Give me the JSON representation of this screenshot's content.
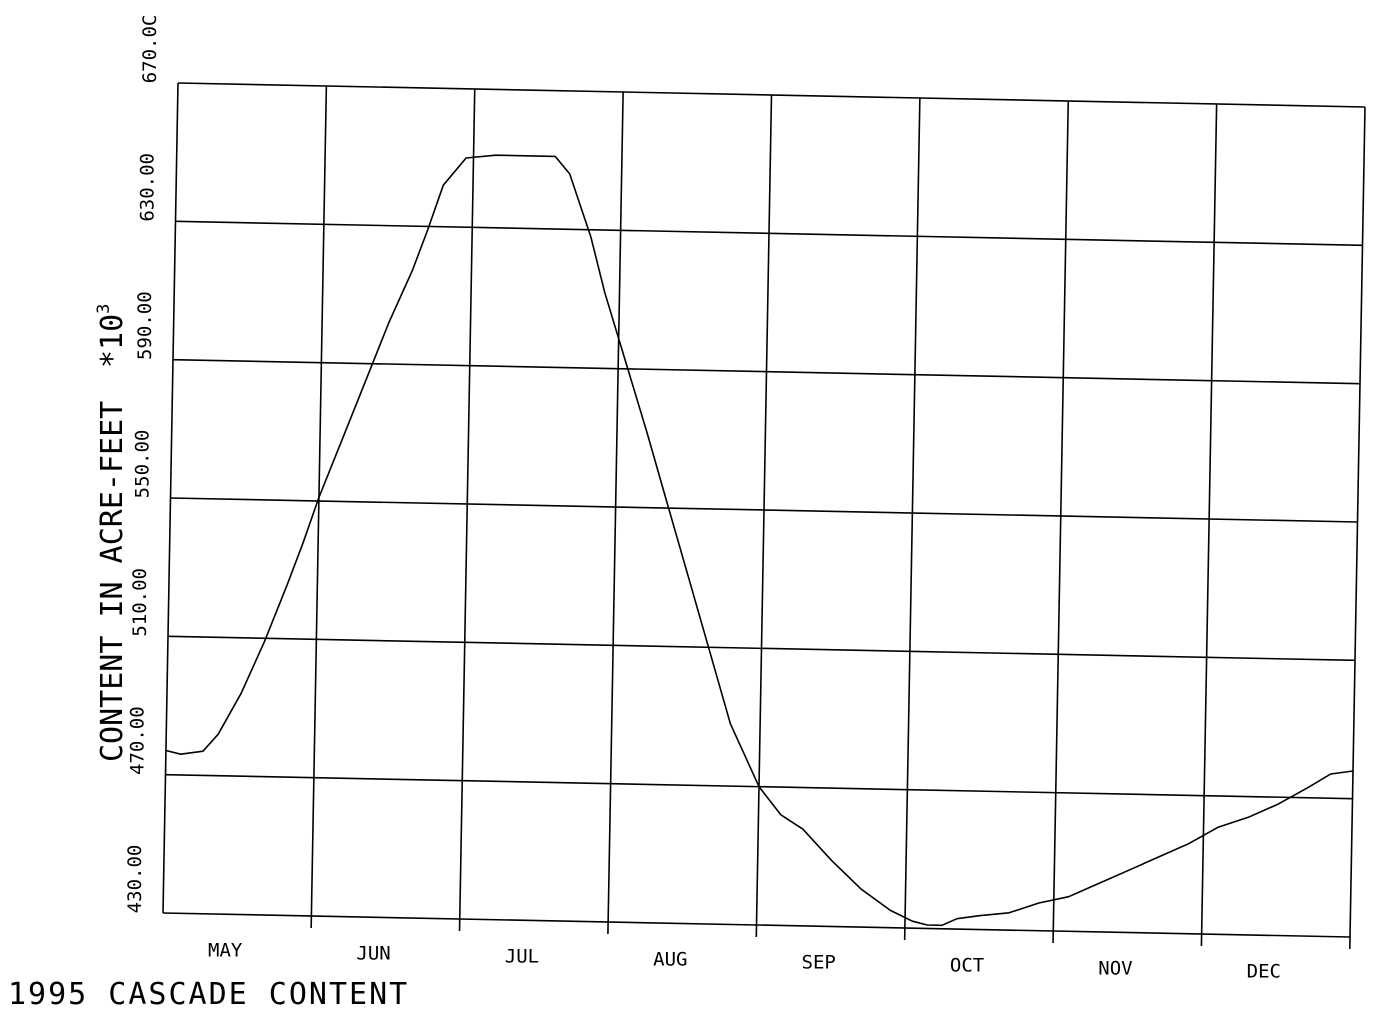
{
  "chart_data": {
    "type": "line",
    "title": "1995 CASCADE CONTENT",
    "ylabel": "CONTENT IN ACRE-FEET",
    "y_scale": {
      "prefix": "*",
      "base": "10",
      "exponent": "3"
    },
    "ylim": [
      430,
      670
    ],
    "yticks": [
      430,
      470,
      510,
      550,
      590,
      630,
      670
    ],
    "ytick_labels": [
      "430.00",
      "470.00",
      "510.00",
      "550.00",
      "590.00",
      "630.00",
      "670.0C"
    ],
    "xlim": [
      0,
      8
    ],
    "categories": [
      "MAY",
      "JUN",
      "JUL",
      "AUG",
      "SEP",
      "OCT",
      "NOV",
      "DEC"
    ],
    "grid": true,
    "line_color": "#000000",
    "series": [
      {
        "x": [
          0.0,
          0.1,
          0.25,
          0.35,
          0.5,
          0.65,
          0.8,
          0.9,
          1.0,
          1.15,
          1.3,
          1.45,
          1.6,
          1.7,
          1.8,
          1.95,
          2.15,
          2.35,
          2.55,
          2.65,
          2.8,
          2.9,
          3.05,
          3.2,
          3.35,
          3.5,
          3.65,
          3.8,
          3.9,
          4.0,
          4.15,
          4.3,
          4.5,
          4.7,
          4.9,
          5.05,
          5.15,
          5.25,
          5.35,
          5.5,
          5.7,
          5.9,
          6.1,
          6.3,
          6.5,
          6.7,
          6.9,
          7.1,
          7.3,
          7.5,
          7.7,
          7.85,
          8.0
        ],
        "y": [
          477,
          476,
          477,
          482,
          494,
          509,
          526,
          538,
          551,
          568,
          585,
          602,
          617,
          629,
          642,
          650,
          651,
          651,
          651,
          646,
          628,
          612,
          592,
          572,
          551,
          530,
          509,
          488,
          479,
          470,
          462,
          458,
          449,
          441,
          435,
          432,
          431,
          431,
          433,
          434,
          435,
          438,
          440,
          444,
          448,
          452,
          456,
          461,
          464,
          468,
          473,
          477,
          478
        ]
      }
    ]
  }
}
